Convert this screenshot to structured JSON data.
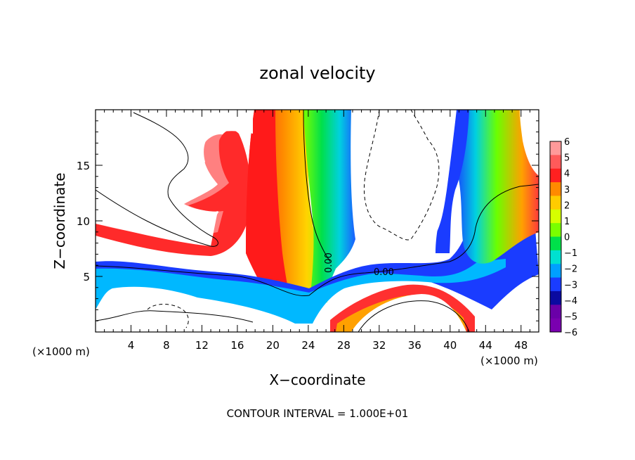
{
  "chart_data": {
    "type": "heatmap",
    "title": "zonal velocity",
    "xlabel": "X−coordinate",
    "ylabel": "Z−coordinate",
    "x_unit_left": "(×1000 m)",
    "x_unit_right": "(×1000 m)",
    "xlim": [
      0,
      50
    ],
    "ylim": [
      0,
      20
    ],
    "x_ticks": [
      4,
      8,
      12,
      16,
      20,
      24,
      28,
      32,
      36,
      40,
      44,
      48
    ],
    "y_ticks": [
      5,
      10,
      15
    ],
    "colorbar": {
      "min": -6,
      "max": 6,
      "labels": [
        "6",
        "5",
        "4",
        "3",
        "2",
        "1",
        "0",
        "−1",
        "−2",
        "−3",
        "−4",
        "−5",
        "−6"
      ],
      "colors": [
        "#ff9a9a",
        "#ff5a5a",
        "#ff2020",
        "#ff8a00",
        "#ffcc00",
        "#d6ff00",
        "#7aff00",
        "#00e04a",
        "#00e0d0",
        "#00a0ff",
        "#1a3cff",
        "#0a0aa0",
        "#6a00a8",
        "#7a00b0"
      ]
    },
    "contour_labels": [
      {
        "text": "0.00",
        "x": 25.5,
        "z": 6.6
      },
      {
        "text": "0.00",
        "x": 32.8,
        "z": 5.4
      }
    ],
    "footer": "CONTOUR INTERVAL = 1.000E+01"
  }
}
